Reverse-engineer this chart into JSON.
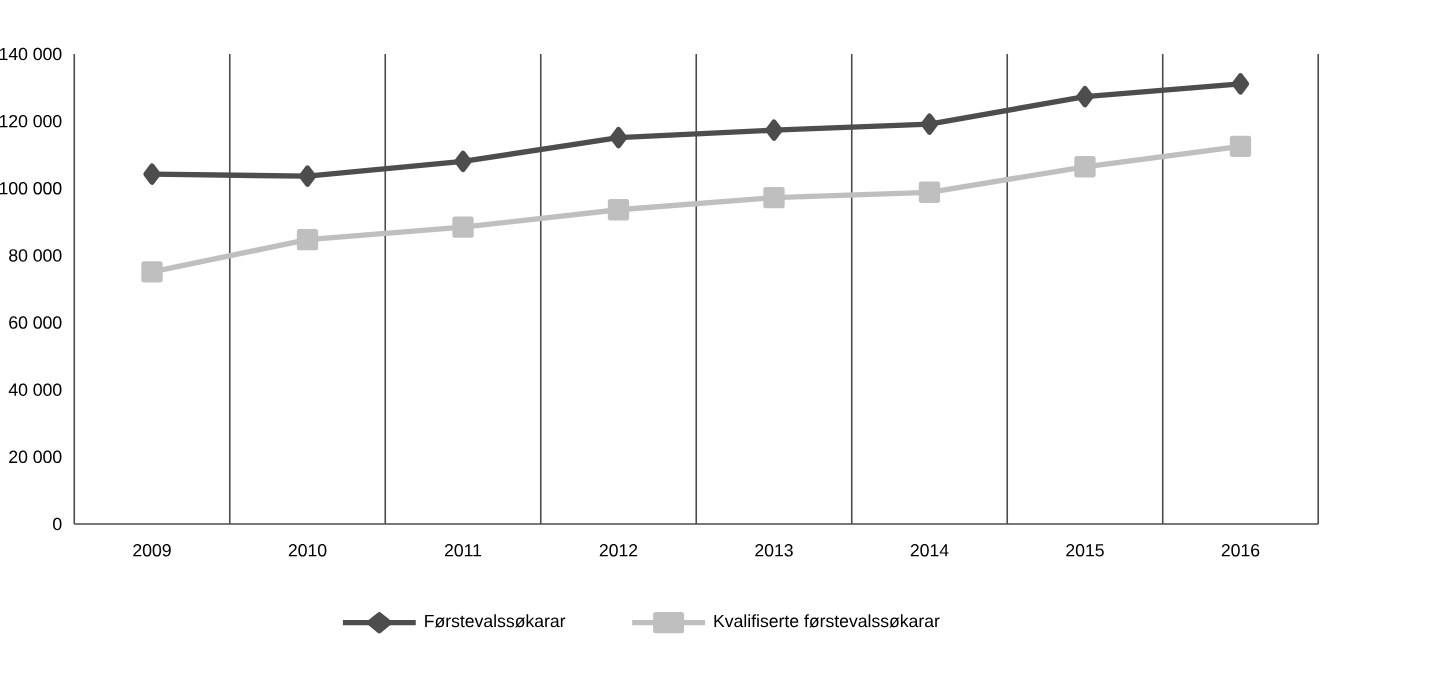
{
  "chart_data": {
    "type": "line",
    "categories": [
      "2009",
      "2010",
      "2011",
      "2012",
      "2013",
      "2014",
      "2015",
      "2016"
    ],
    "series": [
      {
        "name": "Førstevalssøkarar",
        "color": "#4d4d4d",
        "marker": "diamond",
        "values": [
          104200,
          103600,
          108000,
          115100,
          117300,
          119100,
          127300,
          131100
        ]
      },
      {
        "name": "Kvalifiserte førstevalssøkarar",
        "color": "#bfbfbf",
        "marker": "square",
        "values": [
          75100,
          84700,
          88400,
          93600,
          97200,
          98800,
          106400,
          112500
        ]
      }
    ],
    "ylim": [
      0,
      140000
    ],
    "yticks": [
      {
        "value": 0,
        "label": "0"
      },
      {
        "value": 20000,
        "label": "20 000"
      },
      {
        "value": 40000,
        "label": "40 000"
      },
      {
        "value": 60000,
        "label": "60 000"
      },
      {
        "value": 80000,
        "label": "80 000"
      },
      {
        "value": 100000,
        "label": "100 000"
      },
      {
        "value": 120000,
        "label": "120 000"
      },
      {
        "value": 140000,
        "label": "140 000"
      }
    ],
    "grid": "x",
    "legend": "bottom",
    "line_style": "solid"
  }
}
